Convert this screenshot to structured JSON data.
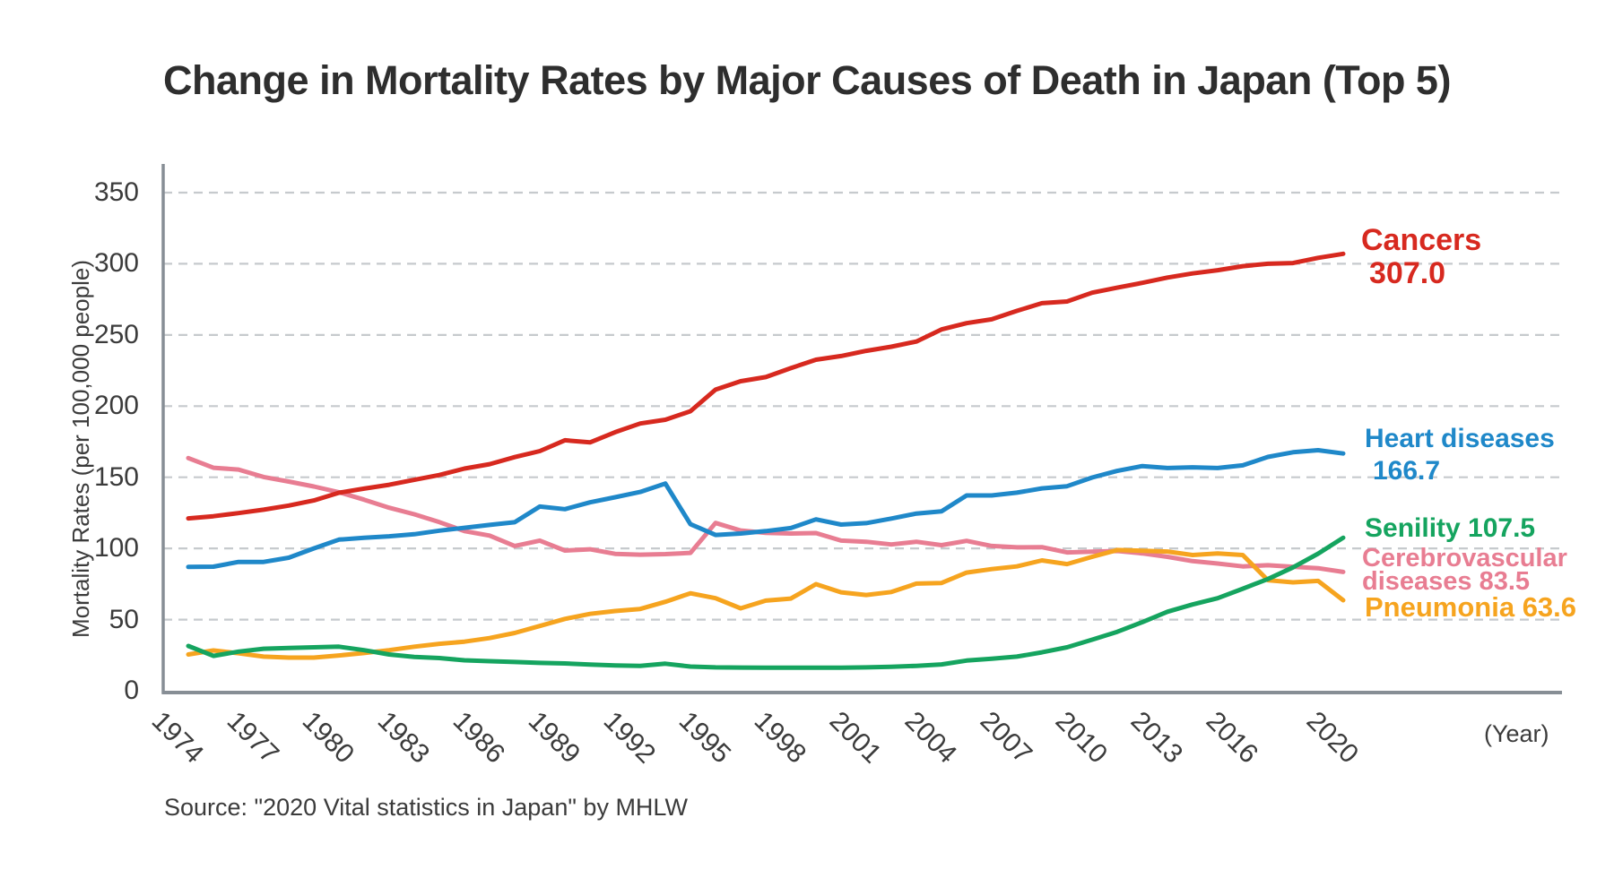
{
  "title": "Change in Mortality Rates by Major Causes of Death in Japan (Top 5)",
  "source": "Source: \"2020 Vital statistics in Japan\" by MHLW",
  "y_axis": {
    "label": "Mortality Rates (per 100,000 people)",
    "ticks": [
      0,
      50,
      100,
      150,
      200,
      250,
      300,
      350
    ]
  },
  "x_axis": {
    "unit": "(Year)",
    "tick_years": [
      1974,
      1977,
      1980,
      1983,
      1986,
      1989,
      1992,
      1995,
      1998,
      2001,
      2004,
      2007,
      2010,
      2013,
      2016,
      2020
    ]
  },
  "colors": {
    "grid": "#c6cacd",
    "axis": "#878e95",
    "tick_text": "#3b3b3b",
    "title_text": "#2e2e2e",
    "cancers": "#d7291f",
    "heart": "#1f88c9",
    "senility": "#15a45f",
    "cerebrovascular": "#e87d92",
    "pneumonia": "#f6a41f"
  },
  "annotations": {
    "cancers": {
      "line1": "Cancers",
      "line2": "307.0",
      "color": "#d7291f"
    },
    "heart": {
      "line1": "Heart diseases",
      "line2": "166.7",
      "color": "#1f88c9"
    },
    "senility": {
      "line1": "Senility 107.5",
      "color": "#15a45f"
    },
    "cerebrovascular": {
      "line1": "Cerebrovascular",
      "line2": "diseases 83.5",
      "color": "#e87d92"
    },
    "pneumonia": {
      "line1": "Pneumonia 63.6",
      "color": "#f6a41f"
    }
  },
  "chart_data": {
    "type": "line",
    "title": "Change in Mortality Rates by Major Causes of Death in Japan (Top 5)",
    "xlabel": "(Year)",
    "ylabel": "Mortality Rates (per 100,000 people)",
    "ylim": [
      0,
      350
    ],
    "xlim": [
      1974,
      2020
    ],
    "grid": true,
    "legend_position": "right-inline-labels",
    "x": [
      1974,
      1975,
      1976,
      1977,
      1978,
      1979,
      1980,
      1981,
      1982,
      1983,
      1984,
      1985,
      1986,
      1987,
      1988,
      1989,
      1990,
      1991,
      1992,
      1993,
      1994,
      1995,
      1996,
      1997,
      1998,
      1999,
      2000,
      2001,
      2002,
      2003,
      2004,
      2005,
      2006,
      2007,
      2008,
      2009,
      2010,
      2011,
      2012,
      2013,
      2014,
      2015,
      2016,
      2017,
      2018,
      2019,
      2020
    ],
    "series": [
      {
        "name": "Cerebrovascular diseases",
        "color": "#e87d92",
        "end_label": "Cerebrovascular diseases 83.5",
        "values": [
          163.5,
          156.7,
          155.4,
          150.2,
          147.0,
          143.5,
          139.5,
          134.3,
          128.6,
          124.0,
          118.5,
          112.2,
          109.0,
          101.7,
          105.5,
          98.5,
          99.4,
          96.2,
          95.6,
          96.0,
          96.9,
          117.9,
          112.6,
          111.0,
          110.5,
          110.8,
          105.5,
          104.7,
          102.8,
          104.7,
          102.3,
          105.3,
          101.7,
          100.8,
          100.9,
          97.2,
          97.7,
          98.2,
          96.5,
          94.1,
          91.1,
          89.4,
          87.4,
          88.2,
          87.1,
          86.1,
          83.5
        ]
      },
      {
        "name": "Pneumonia",
        "color": "#f6a41f",
        "end_label": "Pneumonia 63.6",
        "values": [
          25.5,
          28.3,
          26.3,
          24.0,
          23.3,
          23.3,
          24.8,
          26.5,
          28.5,
          31.0,
          33.0,
          34.5,
          37.0,
          40.6,
          45.5,
          50.5,
          54.0,
          56.0,
          57.5,
          62.5,
          68.5,
          65.0,
          57.9,
          63.3,
          64.8,
          74.9,
          69.2,
          67.3,
          69.4,
          75.3,
          75.7,
          83.0,
          85.5,
          87.4,
          91.6,
          89.0,
          94.1,
          98.9,
          98.4,
          97.8,
          95.4,
          96.5,
          95.4,
          77.7,
          76.2,
          77.2,
          63.6
        ]
      },
      {
        "name": "Senility",
        "color": "#15a45f",
        "end_label": "Senility 107.5",
        "values": [
          31.5,
          24.5,
          27.5,
          29.5,
          30.0,
          30.5,
          31.0,
          28.5,
          25.5,
          23.8,
          23.0,
          21.4,
          20.8,
          20.2,
          19.6,
          19.2,
          18.4,
          17.8,
          17.5,
          19.0,
          17.0,
          16.4,
          16.3,
          16.2,
          16.2,
          16.2,
          16.2,
          16.4,
          16.8,
          17.5,
          18.5,
          21.2,
          22.5,
          24.0,
          27.0,
          30.5,
          35.9,
          41.4,
          48.2,
          55.5,
          60.6,
          65.0,
          71.7,
          78.5,
          86.7,
          96.3,
          107.5
        ]
      },
      {
        "name": "Heart diseases",
        "color": "#1f88c9",
        "end_label": "Heart diseases 166.7",
        "values": [
          87.0,
          87.2,
          90.5,
          90.5,
          93.5,
          100.0,
          106.2,
          107.5,
          108.5,
          110.0,
          112.5,
          114.5,
          116.5,
          118.4,
          129.4,
          127.6,
          132.4,
          136.0,
          139.7,
          145.6,
          117.0,
          109.5,
          110.5,
          112.2,
          114.3,
          120.4,
          116.8,
          117.8,
          121.0,
          124.5,
          126.1,
          137.2,
          137.2,
          139.2,
          142.2,
          143.7,
          149.8,
          154.5,
          157.9,
          156.5,
          157.0,
          156.5,
          158.4,
          164.3,
          167.6,
          169.0,
          166.7
        ]
      },
      {
        "name": "Cancers",
        "color": "#d7291f",
        "end_label": "Cancers 307.0",
        "values": [
          121.1,
          122.6,
          124.8,
          127.2,
          130.1,
          133.7,
          139.1,
          142.0,
          144.7,
          148.2,
          151.6,
          156.1,
          159.2,
          164.2,
          168.4,
          176.0,
          174.5,
          181.7,
          187.8,
          190.4,
          196.4,
          211.6,
          217.5,
          220.4,
          226.7,
          232.6,
          235.2,
          238.8,
          241.7,
          245.4,
          253.9,
          258.3,
          261.0,
          266.9,
          272.3,
          273.5,
          279.7,
          283.2,
          286.6,
          290.3,
          293.2,
          295.5,
          298.3,
          300.0,
          300.5,
          304.2,
          307.0
        ]
      }
    ]
  }
}
